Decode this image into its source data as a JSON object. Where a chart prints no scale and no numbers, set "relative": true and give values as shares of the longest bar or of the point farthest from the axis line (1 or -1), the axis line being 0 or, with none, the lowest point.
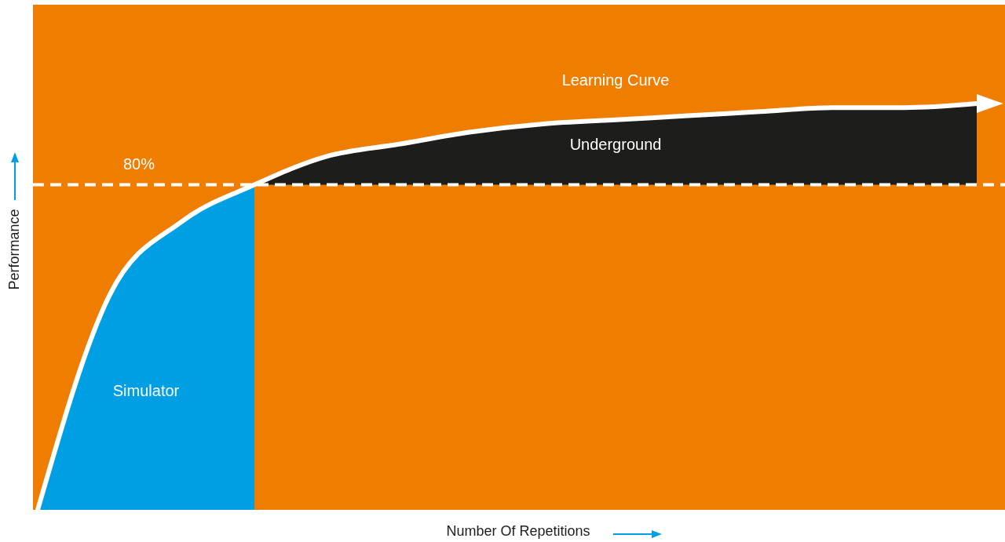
{
  "chart_data": {
    "type": "line",
    "relative": true,
    "xlabel": "Number Of Repetitions",
    "ylabel": "Performance",
    "categories": [
      null,
      null,
      null,
      null,
      null,
      null,
      null,
      null,
      null,
      null,
      null,
      null,
      null,
      null
    ],
    "series": [
      {
        "name": "Simulator",
        "type": "area",
        "color": "#009fe3",
        "values": [
          0,
          0.53,
          0.71,
          0.8,
          null,
          null,
          null,
          null,
          null,
          null,
          null,
          null,
          null,
          null
        ]
      },
      {
        "name": "Underground",
        "type": "area",
        "color": "#1d1d1b",
        "values": [
          null,
          null,
          null,
          0.8,
          0.87,
          0.9,
          0.93,
          0.95,
          0.96,
          0.97,
          0.98,
          0.99,
          0.99,
          1
        ]
      },
      {
        "name": "Learning Curve",
        "color": "#ffffff",
        "values": [
          0,
          0.53,
          0.71,
          0.8,
          0.87,
          0.9,
          0.93,
          0.95,
          0.96,
          0.97,
          0.98,
          0.99,
          0.99,
          1
        ]
      }
    ],
    "ref_lines": [
      {
        "axis": "y",
        "value": 0.8,
        "label": "80%",
        "color": "#ffffff",
        "line_style": "dashed"
      }
    ]
  }
}
